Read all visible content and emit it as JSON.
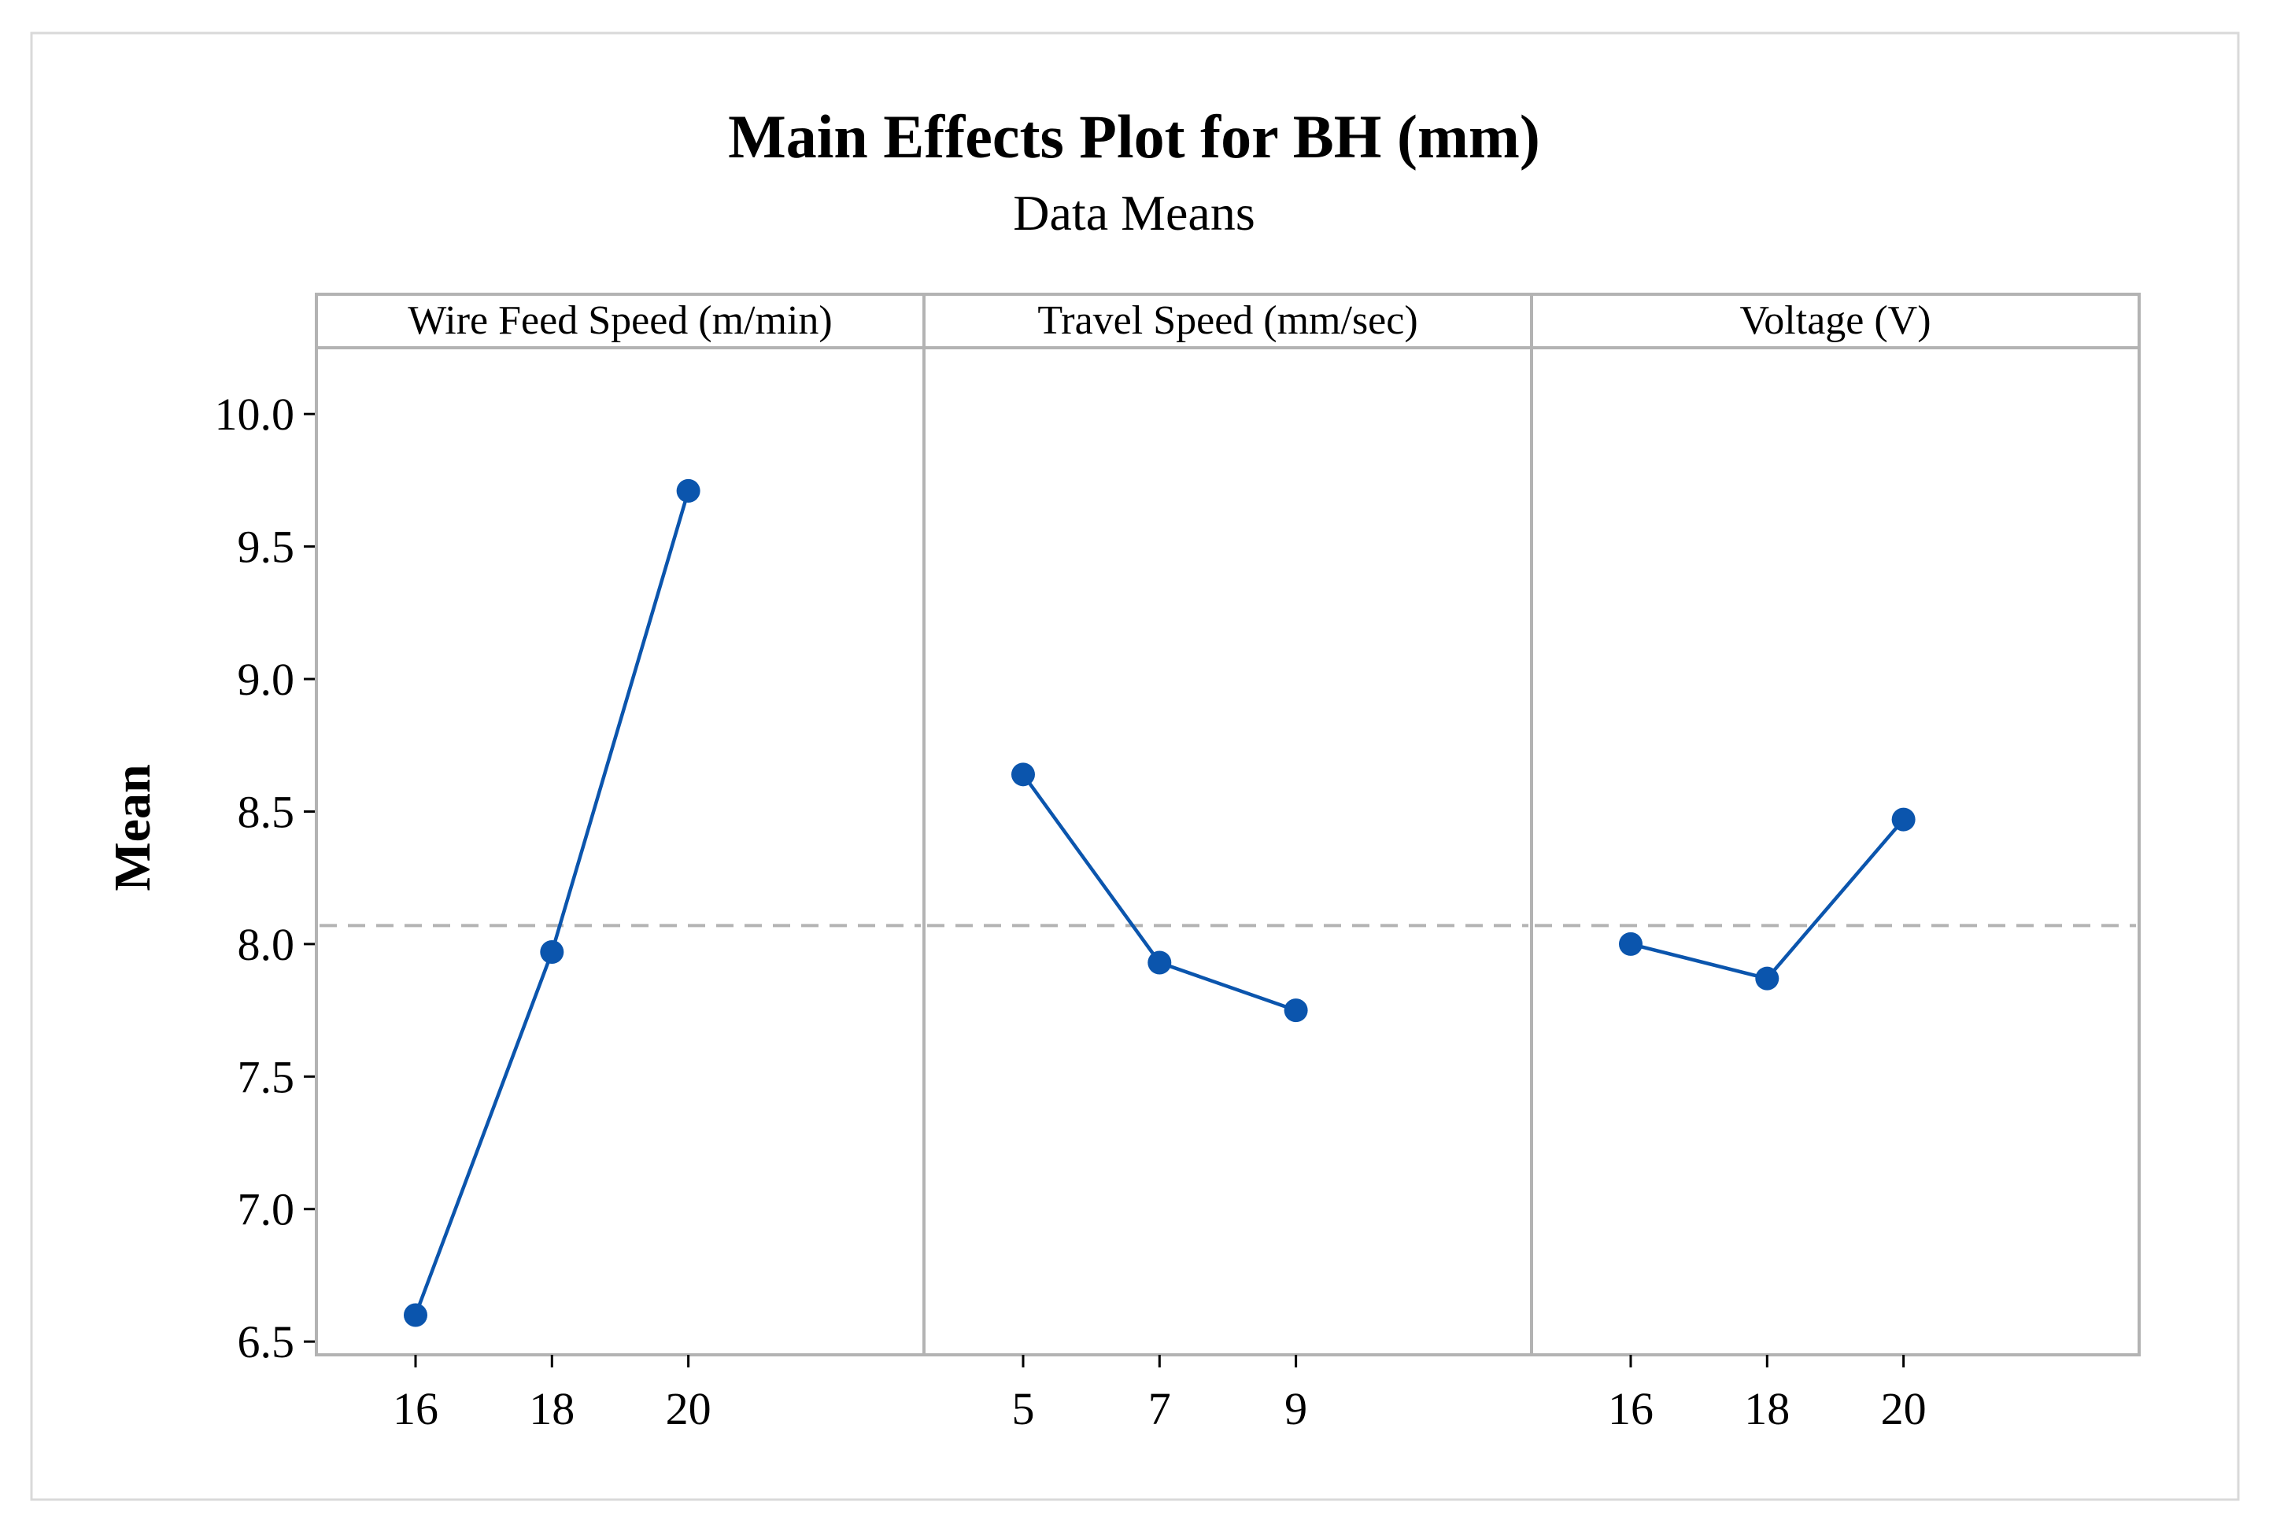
{
  "colors": {
    "series": "#0b55ad",
    "frame": "#b3b3b3",
    "reference_line": "#b3b3b3",
    "text": "#000000",
    "background": "#ffffff"
  },
  "chart_data": {
    "type": "line",
    "title": "Main Effects Plot for BH (mm)",
    "subtitle": "Data Means",
    "ylabel": "Mean",
    "ylim": [
      6.45,
      10.25
    ],
    "yticks": [
      6.5,
      7.0,
      7.5,
      8.0,
      8.5,
      9.0,
      9.5,
      10.0
    ],
    "ytick_labels": [
      "6.5",
      "7.0",
      "7.5",
      "8.0",
      "8.5",
      "9.0",
      "9.5",
      "10.0"
    ],
    "overall_mean": 8.07,
    "grid": false,
    "panels": [
      {
        "name": "Wire Feed Speed (m/min)",
        "categories": [
          "16",
          "18",
          "20"
        ],
        "values": [
          6.6,
          7.97,
          9.71
        ]
      },
      {
        "name": "Travel Speed (mm/sec)",
        "categories": [
          "5",
          "7",
          "9"
        ],
        "values": [
          8.64,
          7.93,
          7.75
        ]
      },
      {
        "name": "Voltage (V)",
        "categories": [
          "16",
          "18",
          "20"
        ],
        "values": [
          8.0,
          7.87,
          8.47
        ]
      }
    ]
  }
}
